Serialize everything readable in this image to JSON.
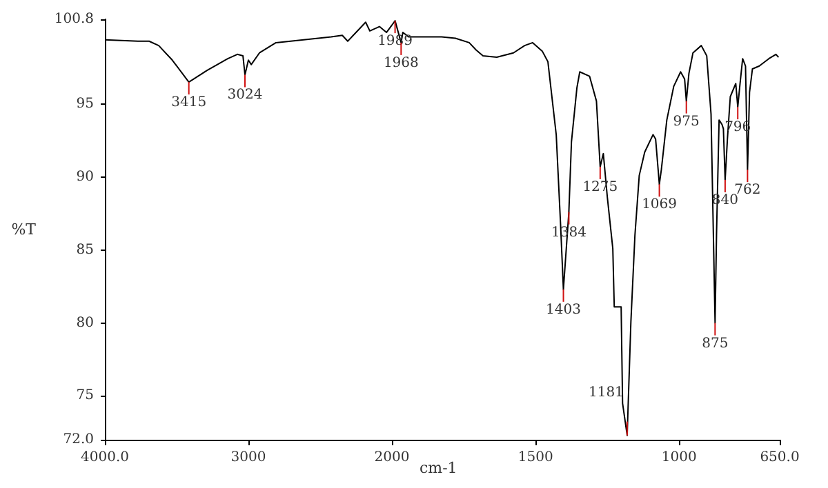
{
  "chart_data": [
    {
      "type": "line",
      "ylabel": "%T",
      "xlim": [
        4000,
        2000
      ],
      "xticks": [
        {
          "value": 4000,
          "label": "4000.0"
        },
        3000,
        2000
      ],
      "ylim": [
        72.0,
        100.8
      ],
      "yticks": [
        {
          "value": 72,
          "label": "72.0"
        },
        75,
        80,
        85,
        90,
        95,
        100.8
      ],
      "marker": "none",
      "line_style": "solid",
      "series": [
        {
          "color": "#000000",
          "x": [
            4000,
            3770,
            3692,
            3625,
            3530,
            3415,
            3288,
            3144,
            3077,
            3038,
            3024,
            3000,
            2980,
            2923,
            2808,
            2423,
            2346,
            2308,
            2250,
            2183,
            2154,
            2087,
            2038,
            2000
          ],
          "values": [
            99.4,
            99.3,
            99.3,
            99.0,
            98.0,
            96.5,
            97.3,
            98.1,
            98.4,
            98.3,
            97.0,
            98.0,
            97.7,
            98.5,
            99.2,
            99.6,
            99.7,
            99.3,
            99.9,
            100.6,
            100.0,
            100.3,
            99.9,
            100.4
          ]
        }
      ],
      "annotations": [
        {
          "text": "3415",
          "x": 3415,
          "y": 96.5
        },
        {
          "text": "3024",
          "x": 3024,
          "y": 97.0
        }
      ]
    },
    {
      "type": "line",
      "xlabel": "cm-1",
      "xlim": [
        2000,
        650
      ],
      "xticks": [
        1500,
        1000,
        {
          "value": 650,
          "label": "650.0"
        }
      ],
      "ylim": [
        72.0,
        100.8
      ],
      "tick_labels": "x",
      "marker": "none",
      "line_style": "solid",
      "series": [
        {
          "color": "#000000",
          "x": [
            2000,
            1989,
            1968,
            1962,
            1942,
            1923,
            1827,
            1779,
            1731,
            1707,
            1683,
            1635,
            1577,
            1538,
            1510,
            1476,
            1457,
            1428,
            1413,
            1403,
            1384,
            1375,
            1356,
            1346,
            1312,
            1288,
            1275,
            1264,
            1250,
            1231,
            1226,
            1202,
            1197,
            1181,
            1168,
            1154,
            1139,
            1120,
            1091,
            1082,
            1069,
            1062,
            1043,
            1019,
            995,
            981,
            975,
            966,
            952,
            923,
            904,
            889,
            880,
            875,
            870,
            861,
            851,
            846,
            840,
            832,
            822,
            803,
            796,
            788,
            779,
            769,
            762,
            755,
            745,
            721,
            688,
            663,
            654
          ],
          "values": [
            100.4,
            100.7,
            99.2,
            99.9,
            99.6,
            99.6,
            99.6,
            99.5,
            99.2,
            98.7,
            98.3,
            98.2,
            98.5,
            99.0,
            99.2,
            98.6,
            97.9,
            92.9,
            86.8,
            82.3,
            87.6,
            92.4,
            96.1,
            97.2,
            96.9,
            95.2,
            90.7,
            91.6,
            88.6,
            85.1,
            81.1,
            81.1,
            74.5,
            72.3,
            80.1,
            86.0,
            90.1,
            91.7,
            92.9,
            92.6,
            89.5,
            90.5,
            93.9,
            96.2,
            97.2,
            96.7,
            95.2,
            97.1,
            98.5,
            99.0,
            98.3,
            94.3,
            85.1,
            80.0,
            86.0,
            93.9,
            93.6,
            93.3,
            89.8,
            92.6,
            95.5,
            96.4,
            94.8,
            96.4,
            98.1,
            97.6,
            90.5,
            95.8,
            97.4,
            97.6,
            98.1,
            98.4,
            98.2
          ]
        }
      ],
      "annotations": [
        {
          "text": "1989",
          "x": 1989,
          "y": 100.7
        },
        {
          "text": "1968",
          "x": 1968,
          "y": 99.2
        },
        {
          "text": "1403",
          "x": 1403,
          "y": 82.3
        },
        {
          "text": "1384",
          "x": 1384,
          "y": 87.6
        },
        {
          "text": "1275",
          "x": 1275,
          "y": 90.7
        },
        {
          "text": "1181",
          "x": 1181,
          "y": 72.3
        },
        {
          "text": "1069",
          "x": 1069,
          "y": 89.5
        },
        {
          "text": "975",
          "x": 975,
          "y": 95.2
        },
        {
          "text": "875",
          "x": 875,
          "y": 80.0
        },
        {
          "text": "840",
          "x": 840,
          "y": 89.8
        },
        {
          "text": "796",
          "x": 796,
          "y": 94.8
        },
        {
          "text": "762",
          "x": 762,
          "y": 90.5
        }
      ]
    }
  ]
}
